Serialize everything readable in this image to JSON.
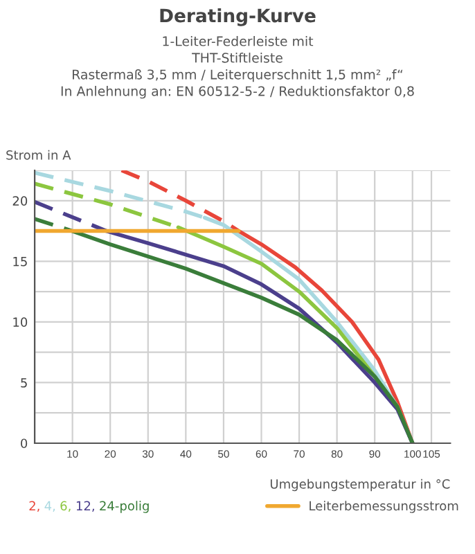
{
  "chart_data": {
    "type": "line",
    "title": "Derating-Kurve",
    "subtitle": "1-Leiter-Federleiste mit\nTHT-Stiftleiste\nRastermaß 3,5 mm / Leiterquerschnitt 1,5 mm² „f“\nIn Anlehnung an: EN 60512-5-2 / Reduktionsfaktor 0,8",
    "xlabel": "Umgebungstemperatur in °C",
    "ylabel": "Strom in A",
    "xlim": [
      0,
      110
    ],
    "ylim": [
      0,
      22.5
    ],
    "xticks": [
      {
        "value": 0,
        "label": null
      },
      10,
      20,
      30,
      40,
      50,
      60,
      70,
      80,
      90,
      100,
      105
    ],
    "yticks": [
      0,
      {
        "value": 2.5,
        "label": null
      },
      5,
      {
        "value": 7.5,
        "label": null
      },
      10,
      {
        "value": 12.5,
        "label": null
      },
      15,
      {
        "value": 17.5,
        "label": null
      },
      20,
      {
        "value": 22.5,
        "label": null
      }
    ],
    "grid": true,
    "legend": "bottom",
    "series": [
      {
        "color": "#e8463a",
        "line_style": "dashed",
        "x": [
          23,
          30,
          40,
          50,
          54
        ],
        "values": [
          22.5,
          21.6,
          20.0,
          18.3,
          17.5
        ]
      },
      {
        "name": "2,",
        "color": "#e8463a",
        "line_style": "solid",
        "x": [
          54,
          60,
          69,
          76,
          84,
          91,
          96,
          100
        ],
        "values": [
          17.5,
          16.4,
          14.5,
          12.6,
          10,
          6.9,
          3.4,
          0
        ]
      },
      {
        "color": "#a8d8e0",
        "line_style": "dashed",
        "x": [
          0,
          20,
          40,
          45
        ],
        "values": [
          22.3,
          20.8,
          19.1,
          18.6
        ]
      },
      {
        "name": "4,",
        "color": "#a8d8e0",
        "line_style": "solid",
        "x": [
          45,
          50,
          60,
          70,
          80,
          90,
          96,
          100
        ],
        "values": [
          18.6,
          18.0,
          15.8,
          13.5,
          10,
          6,
          3,
          0
        ]
      },
      {
        "color": "#8cc63f",
        "line_style": "dashed",
        "x": [
          0,
          20,
          38
        ],
        "values": [
          21.4,
          19.7,
          17.8
        ]
      },
      {
        "name": "6,",
        "color": "#8cc63f",
        "line_style": "solid",
        "x": [
          38,
          50,
          60,
          70,
          80,
          90,
          96,
          100
        ],
        "values": [
          17.8,
          16.2,
          14.8,
          12.5,
          9.5,
          5.5,
          3,
          0
        ]
      },
      {
        "color": "#4b3f8c",
        "line_style": "dashed",
        "x": [
          0,
          19
        ],
        "values": [
          19.9,
          17.5
        ]
      },
      {
        "name": "12,",
        "color": "#4b3f8c",
        "line_style": "solid",
        "x": [
          19,
          30,
          50,
          60,
          70,
          80,
          90,
          96,
          100
        ],
        "values": [
          17.5,
          16.5,
          14.6,
          13.1,
          11.1,
          8.3,
          5,
          2.8,
          0
        ]
      },
      {
        "color": "#3a7d3a",
        "line_style": "dashed",
        "x": [
          0,
          9
        ],
        "values": [
          18.5,
          17.6
        ]
      },
      {
        "name": "24-polig",
        "color": "#3a7d3a",
        "line_style": "solid",
        "x": [
          9,
          20,
          40,
          60,
          70,
          80,
          90,
          96,
          100
        ],
        "values": [
          17.6,
          16.4,
          14.4,
          12.0,
          10.6,
          8.5,
          5.5,
          3,
          0
        ]
      },
      {
        "name": "Leiterbemessungsstrom",
        "color": "#f0a830",
        "line_style": "solid",
        "x": [
          0,
          54
        ],
        "values": [
          17.5,
          17.5
        ]
      }
    ]
  }
}
